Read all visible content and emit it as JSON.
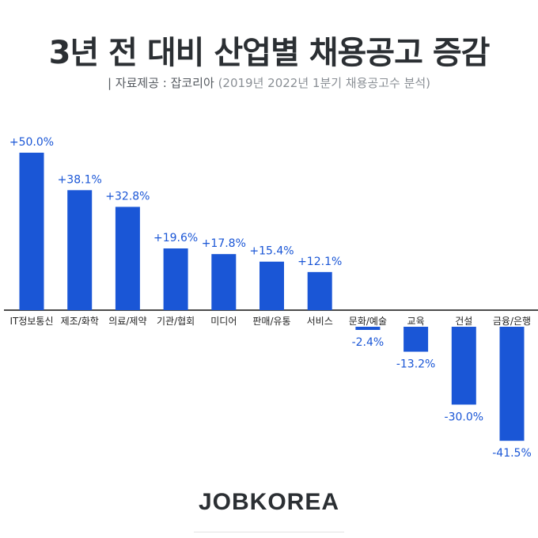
{
  "header": {
    "title": "3년 전 대비 산업별 채용공고 증감",
    "source_prefix": "| 자료제공 : 잡코리아",
    "source_note": "(2019년 2022년 1분기 채용공고수 분석)"
  },
  "footer": {
    "logo_text": "JOBKOREA"
  },
  "colors": {
    "bar": "#1a56d6",
    "label": "#1a56d6",
    "axis": "#111111",
    "category": "#222222"
  },
  "chart_data": {
    "type": "bar",
    "title": "3년 전 대비 산업별 채용공고 증감",
    "xlabel": "",
    "ylabel": "",
    "ylim": [
      -41.5,
      50
    ],
    "grid": false,
    "categories": [
      "IT정보통신",
      "제조/화학",
      "의료/제약",
      "기관/협회",
      "미디어",
      "판매/유통",
      "서비스",
      "문화/예술",
      "교육",
      "건설",
      "금융/은행"
    ],
    "values": [
      50.0,
      38.1,
      32.8,
      19.6,
      17.8,
      15.4,
      12.1,
      -2.4,
      -13.2,
      -30.0,
      -41.5
    ],
    "value_labels": [
      "+50.0%",
      "+38.1%",
      "+32.8%",
      "+19.6%",
      "+17.8%",
      "+15.4%",
      "+12.1%",
      "-2.4%",
      "-13.2%",
      "-30.0%",
      "-41.5%"
    ]
  }
}
